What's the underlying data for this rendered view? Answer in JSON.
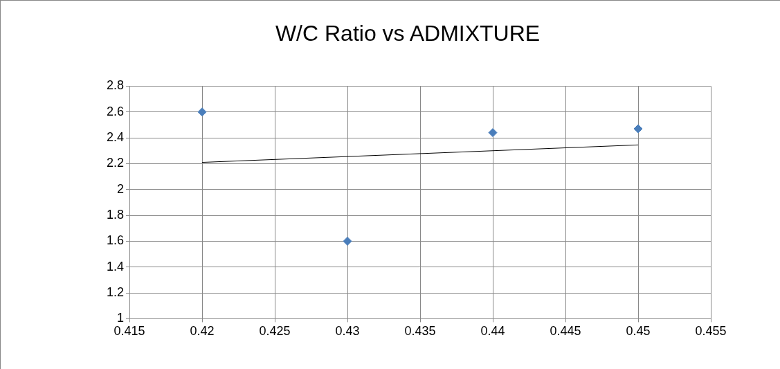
{
  "chart_data": {
    "type": "scatter",
    "title": "W/C Ratio vs ADMIXTURE",
    "marker": "diamond",
    "grid": true,
    "legend": false,
    "xlim": [
      0.415,
      0.455
    ],
    "xticks": [
      0.415,
      0.42,
      0.425,
      0.43,
      0.435,
      0.44,
      0.445,
      0.45,
      0.455
    ],
    "ylim": [
      1,
      2.8
    ],
    "yticks": [
      1,
      1.2,
      1.4,
      1.6,
      1.8,
      2,
      2.2,
      2.4,
      2.6,
      2.8
    ],
    "series": [
      {
        "type": "scatter",
        "color": "#4a7ebb",
        "x": [
          0.42,
          0.43,
          0.44,
          0.45
        ],
        "values": [
          2.6,
          1.6,
          2.44,
          2.47
        ]
      },
      {
        "type": "line",
        "color": "#000000",
        "marker": "none",
        "x": [
          0.42,
          0.45
        ],
        "values": [
          2.21,
          2.345
        ]
      }
    ]
  }
}
